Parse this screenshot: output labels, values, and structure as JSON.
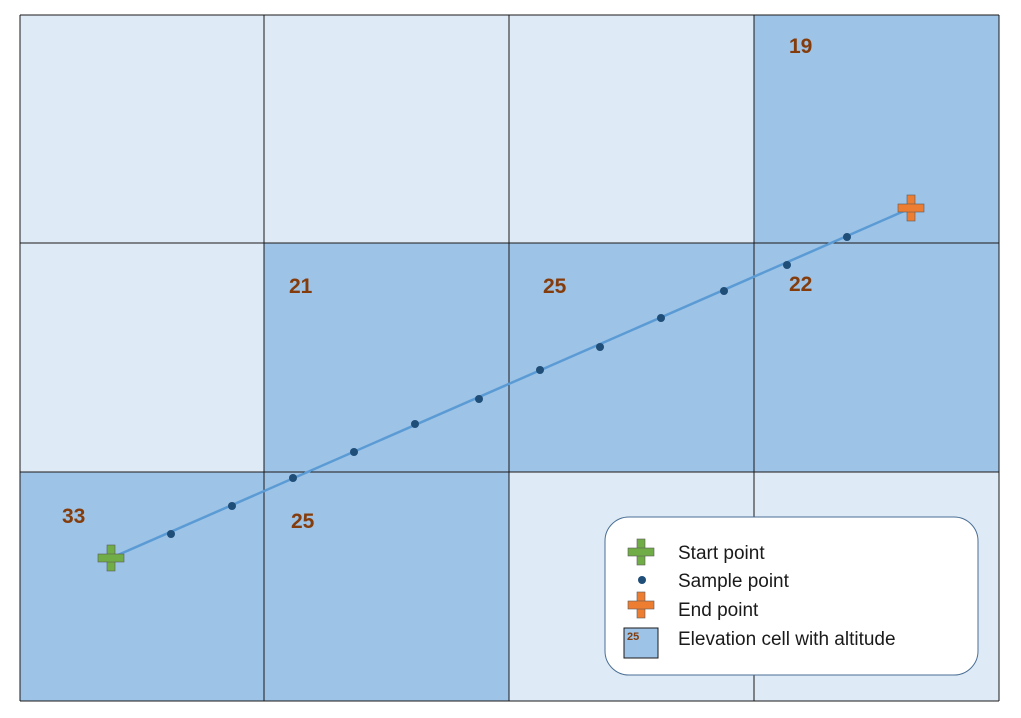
{
  "colors": {
    "cell_plain": "#deeaf6",
    "cell_elevation": "#9dc3e6",
    "grid_line": "#1a1a1a",
    "path_line": "#5b9bd5",
    "sample_point": "#1f4e79",
    "start_marker": "#70ad47",
    "end_marker": "#ed7d31",
    "altitude_text": "#843c0c"
  },
  "grid": {
    "rows": 3,
    "cols": 4,
    "cells": [
      {
        "row": 0,
        "col": 0,
        "elevation": false,
        "altitude": ""
      },
      {
        "row": 0,
        "col": 1,
        "elevation": false,
        "altitude": ""
      },
      {
        "row": 0,
        "col": 2,
        "elevation": false,
        "altitude": ""
      },
      {
        "row": 0,
        "col": 3,
        "elevation": true,
        "altitude": "19"
      },
      {
        "row": 1,
        "col": 0,
        "elevation": false,
        "altitude": ""
      },
      {
        "row": 1,
        "col": 1,
        "elevation": true,
        "altitude": "21"
      },
      {
        "row": 1,
        "col": 2,
        "elevation": true,
        "altitude": "25"
      },
      {
        "row": 1,
        "col": 3,
        "elevation": true,
        "altitude": "22"
      },
      {
        "row": 2,
        "col": 0,
        "elevation": true,
        "altitude": "33"
      },
      {
        "row": 2,
        "col": 1,
        "elevation": true,
        "altitude": "25"
      },
      {
        "row": 2,
        "col": 2,
        "elevation": false,
        "altitude": ""
      },
      {
        "row": 2,
        "col": 3,
        "elevation": false,
        "altitude": ""
      }
    ]
  },
  "path": {
    "start_marker": "start-plus-icon",
    "end_marker": "end-plus-icon",
    "sample_count": 12
  },
  "legend": {
    "items": [
      {
        "icon": "start-plus-icon",
        "label": "Start point"
      },
      {
        "icon": "sample-dot-icon",
        "label": "Sample point"
      },
      {
        "icon": "end-plus-icon",
        "label": "End point"
      },
      {
        "icon": "elevation-cell-icon",
        "label": "Elevation cell with altitude",
        "swatch_text": "25"
      }
    ]
  }
}
